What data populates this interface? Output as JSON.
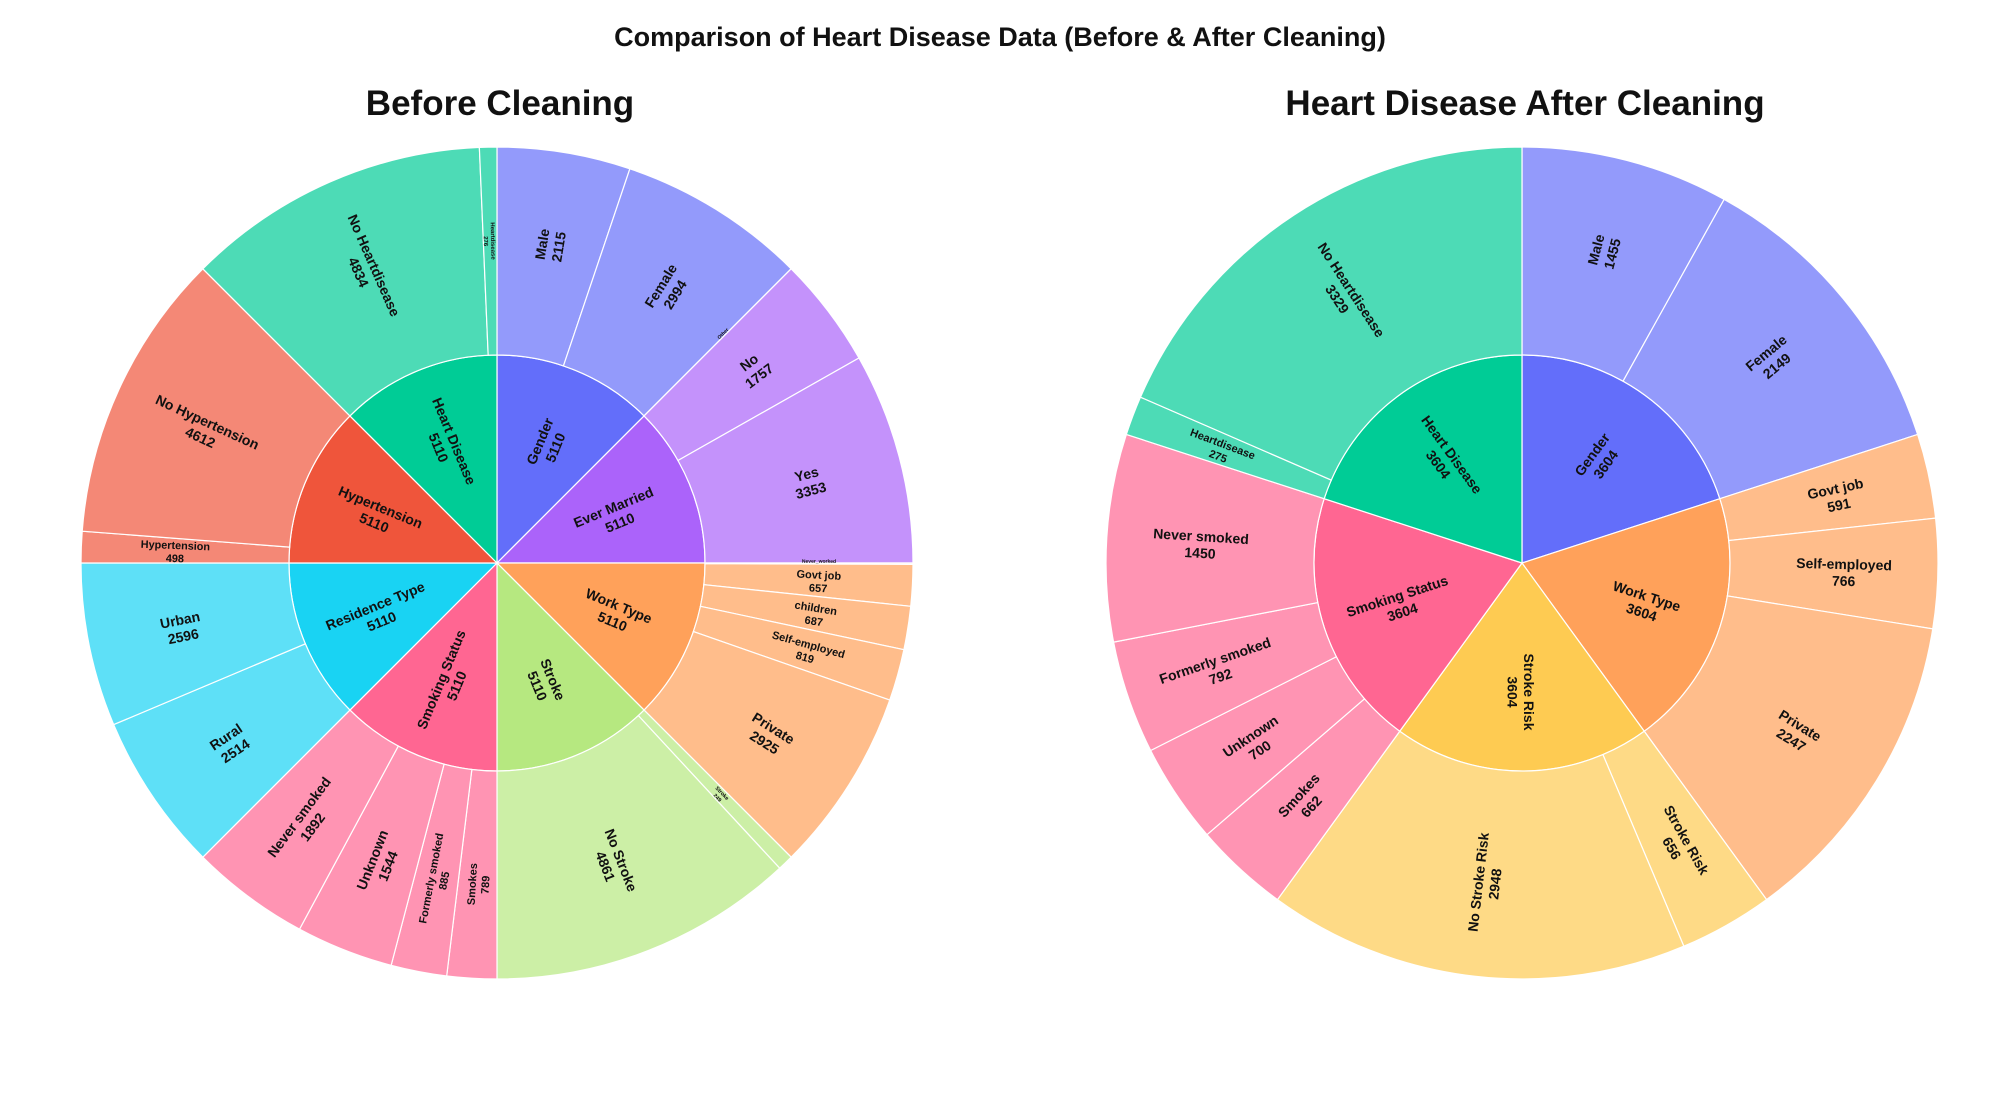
{
  "title": "Comparison of Heart Disease Data (Before & After Cleaning)",
  "chart_data": [
    {
      "type": "sunburst",
      "title": "Before Cleaning",
      "groups": [
        {
          "name": "Gender",
          "value": 5110,
          "color": "#636EFA",
          "children": [
            {
              "name": "Male",
              "value": 2115,
              "color": "#939AFB"
            },
            {
              "name": "Female",
              "value": 2994,
              "color": "#939AFB"
            },
            {
              "name": "Other",
              "value": 1,
              "color": "#939AFB"
            }
          ]
        },
        {
          "name": "Ever Married",
          "value": 5110,
          "color": "#AB63FA",
          "children": [
            {
              "name": "No",
              "value": 1757,
              "color": "#C492FB"
            },
            {
              "name": "Yes",
              "value": 3353,
              "color": "#C492FB"
            }
          ]
        },
        {
          "name": "Work Type",
          "value": 5110,
          "color": "#FFA15A",
          "children": [
            {
              "name": "Never_worked",
              "value": 22,
              "color": "#FFBD8B"
            },
            {
              "name": "Govt job",
              "value": 657,
              "color": "#FFBD8B"
            },
            {
              "name": "children",
              "value": 687,
              "color": "#FFBD8B"
            },
            {
              "name": "Self-employed",
              "value": 819,
              "color": "#FFBD8B"
            },
            {
              "name": "Private",
              "value": 2925,
              "color": "#FFBD8B"
            }
          ]
        },
        {
          "name": "Stroke",
          "value": 5110,
          "color": "#B6E880",
          "children": [
            {
              "name": "Stroke",
              "value": 249,
              "color": "#CCEFA6"
            },
            {
              "name": "No Stroke",
              "value": 4861,
              "color": "#CCEFA6"
            }
          ]
        },
        {
          "name": "Smoking Status",
          "value": 5110,
          "color": "#FF6692",
          "children": [
            {
              "name": "Smokes",
              "value": 789,
              "color": "#FF94B3"
            },
            {
              "name": "Formerly smoked",
              "value": 885,
              "color": "#FF94B3"
            },
            {
              "name": "Unknown",
              "value": 1544,
              "color": "#FF94B3"
            },
            {
              "name": "Never smoked",
              "value": 1892,
              "color": "#FF94B3"
            }
          ]
        },
        {
          "name": "Residence Type",
          "value": 5110,
          "color": "#19D3F3",
          "children": [
            {
              "name": "Rural",
              "value": 2514,
              "color": "#5EE0F7"
            },
            {
              "name": "Urban",
              "value": 2596,
              "color": "#5EE0F7"
            }
          ]
        },
        {
          "name": "Hypertension",
          "value": 5110,
          "color": "#EF553B",
          "children": [
            {
              "name": "Hypertension",
              "value": 498,
              "color": "#F48876"
            },
            {
              "name": "No Hypertension",
              "value": 4612,
              "color": "#F48876"
            }
          ]
        },
        {
          "name": "Heart Disease",
          "value": 5110,
          "color": "#00CC96",
          "children": [
            {
              "name": "No Heartdisease",
              "value": 4834,
              "color": "#4DDBB6"
            },
            {
              "name": "Heartdisease",
              "value": 276,
              "color": "#4DDBB6"
            }
          ]
        }
      ]
    },
    {
      "type": "sunburst",
      "title": "Heart Disease After Cleaning",
      "groups": [
        {
          "name": "Gender",
          "value": 3604,
          "color": "#636EFA",
          "children": [
            {
              "name": "Male",
              "value": 1455,
              "color": "#939AFB"
            },
            {
              "name": "Female",
              "value": 2149,
              "color": "#939AFB"
            }
          ]
        },
        {
          "name": "Work Type",
          "value": 3604,
          "color": "#FFA15A",
          "children": [
            {
              "name": "Govt job",
              "value": 591,
              "color": "#FFBD8B"
            },
            {
              "name": "Self-employed",
              "value": 766,
              "color": "#FFBD8B"
            },
            {
              "name": "Private",
              "value": 2247,
              "color": "#FFBD8B"
            }
          ]
        },
        {
          "name": "Stroke Risk",
          "value": 3604,
          "color": "#FECB52",
          "children": [
            {
              "name": "Stroke Risk",
              "value": 656,
              "color": "#FEDA86"
            },
            {
              "name": "No Stroke Risk",
              "value": 2948,
              "color": "#FEDA86"
            }
          ]
        },
        {
          "name": "Smoking Status",
          "value": 3604,
          "color": "#FF6692",
          "children": [
            {
              "name": "Smokes",
              "value": 662,
              "color": "#FF94B3"
            },
            {
              "name": "Unknown",
              "value": 700,
              "color": "#FF94B3"
            },
            {
              "name": "Formerly smoked",
              "value": 792,
              "color": "#FF94B3"
            },
            {
              "name": "Never smoked",
              "value": 1450,
              "color": "#FF94B3"
            }
          ]
        },
        {
          "name": "Heart Disease",
          "value": 3604,
          "color": "#00CC96",
          "children": [
            {
              "name": "Heartdisease",
              "value": 275,
              "color": "#4DDBB6"
            },
            {
              "name": "No Heartdisease",
              "value": 3329,
              "color": "#4DDBB6"
            }
          ]
        }
      ]
    }
  ]
}
